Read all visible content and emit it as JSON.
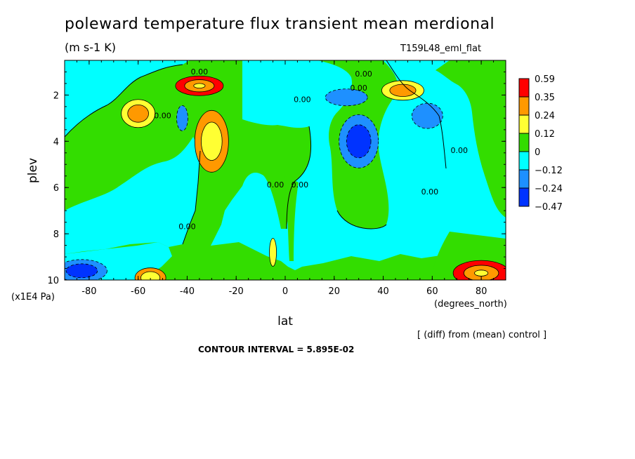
{
  "header": {
    "title": "poleward temperature flux transient mean merdional",
    "units": "(m s-1 K)",
    "run": "T159L48_eml_flat"
  },
  "footer": {
    "yunit": "(x1E4 Pa)",
    "xunit": "(degrees_north)",
    "diff_note": "[ (diff) from (mean) control ]",
    "contour_interval": "CONTOUR INTERVAL = 5.895E-02"
  },
  "chart_data": {
    "type": "heatmap",
    "title": "poleward temperature flux transient mean merdional",
    "xlabel": "lat",
    "ylabel": "plev",
    "xlim": [
      -90,
      90
    ],
    "ylim": [
      0.5,
      10
    ],
    "y_inverted": true,
    "xticks": [
      -80,
      -60,
      -40,
      -20,
      0,
      20,
      40,
      60,
      80
    ],
    "yticks": [
      2,
      4,
      6,
      8,
      10
    ],
    "colorbar": {
      "labels": [
        "0.59",
        "0.35",
        "0.24",
        "0.12",
        "0",
        "−0.12",
        "−0.24",
        "−0.47"
      ],
      "colors": [
        "#ff0000",
        "#ff9900",
        "#ffff33",
        "#33dd00",
        "#00ffff",
        "#1e90ff",
        "#0033ff"
      ]
    },
    "contour_labels": [
      {
        "text": "0.00",
        "x": -35,
        "y": 1.1
      },
      {
        "text": "0.00",
        "x": -50,
        "y": 3.0
      },
      {
        "text": "0.00",
        "x": 7,
        "y": 2.3
      },
      {
        "text": "0.00",
        "x": 32,
        "y": 1.2
      },
      {
        "text": "0.00",
        "x": 30,
        "y": 1.8
      },
      {
        "text": "0.00",
        "x": -4,
        "y": 6.0
      },
      {
        "text": "0.00",
        "x": 6,
        "y": 6.0
      },
      {
        "text": "0.00",
        "x": 59,
        "y": 6.3
      },
      {
        "text": "0.00",
        "x": 71,
        "y": 4.5
      },
      {
        "text": "0.00",
        "x": -40,
        "y": 7.8
      }
    ],
    "features": [
      {
        "x": -60,
        "y": 2.8,
        "value": 0.24
      },
      {
        "x": -35,
        "y": 1.6,
        "value": 0.59
      },
      {
        "x": -30,
        "y": 4.0,
        "value": 0.35
      },
      {
        "x": -42,
        "y": 3.0,
        "value": -0.24
      },
      {
        "x": 25,
        "y": 2.1,
        "value": -0.24
      },
      {
        "x": 30,
        "y": 4.0,
        "value": -0.47
      },
      {
        "x": 48,
        "y": 1.8,
        "value": 0.24
      },
      {
        "x": 58,
        "y": 2.9,
        "value": -0.24
      },
      {
        "x": -83,
        "y": 9.6,
        "value": -0.47
      },
      {
        "x": -55,
        "y": 9.9,
        "value": 0.35
      },
      {
        "x": 80,
        "y": 9.7,
        "value": 0.59
      },
      {
        "x": -5,
        "y": 8.8,
        "value": 0.12
      }
    ]
  }
}
